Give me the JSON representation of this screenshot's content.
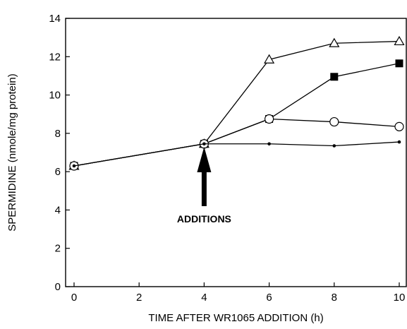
{
  "chart_data": {
    "type": "line",
    "title": "",
    "xlabel": "TIME AFTER WR1065 ADDITION (h)",
    "ylabel": "SPERMIDINE (nmole/mg protein)",
    "xlim": [
      0,
      10
    ],
    "ylim": [
      0,
      14
    ],
    "xticks": [
      "0",
      "2",
      "4",
      "6",
      "8",
      "10"
    ],
    "yticks": [
      "0",
      "2",
      "4",
      "6",
      "8",
      "10",
      "12",
      "14"
    ],
    "grid": false,
    "legend": "none",
    "series": [
      {
        "marker": "open-triangle",
        "x": [
          0,
          4,
          6,
          8,
          10
        ],
        "y": [
          6.3,
          7.45,
          11.85,
          12.7,
          12.8
        ]
      },
      {
        "marker": "filled-square",
        "x": [
          0,
          4,
          6,
          8,
          10
        ],
        "y": [
          6.3,
          7.45,
          8.75,
          10.95,
          11.65
        ]
      },
      {
        "marker": "open-circle",
        "x": [
          0,
          4,
          6,
          8,
          10
        ],
        "y": [
          6.3,
          7.45,
          8.75,
          8.6,
          8.35
        ]
      },
      {
        "marker": "small-dot",
        "x": [
          0,
          4,
          6,
          8,
          10
        ],
        "y": [
          6.3,
          7.45,
          7.45,
          7.35,
          7.55
        ]
      }
    ],
    "annotations": [
      {
        "text": "ADDITIONS",
        "arrow_at_x": 4
      }
    ]
  }
}
